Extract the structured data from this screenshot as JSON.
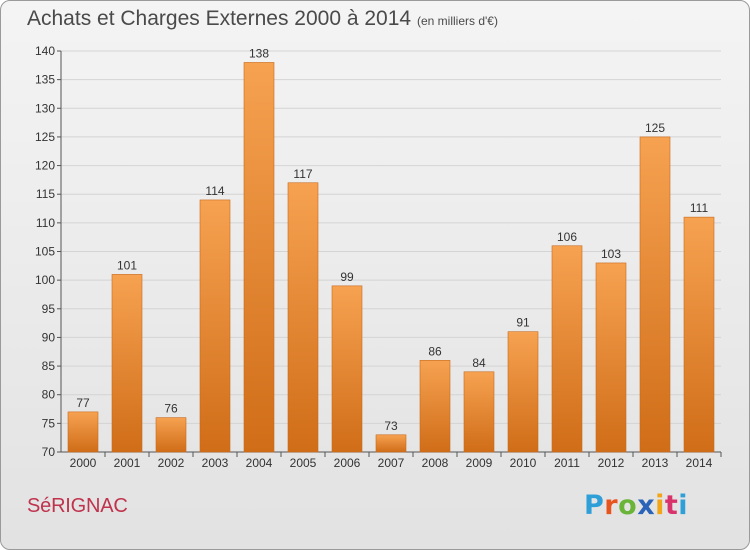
{
  "title": "Achats et Charges Externes 2000 à 2014",
  "unit_note": "(en milliers d'€)",
  "commune": "SéRIGNAC",
  "logo": {
    "letters": [
      "P",
      "r",
      "o",
      "x",
      "i",
      "t",
      "i"
    ],
    "colors": [
      "#2f9fd8",
      "#e8541e",
      "#6ab43a",
      "#2a63b8",
      "#f2a516",
      "#d8336b",
      "#2f9fd8"
    ]
  },
  "colors": {
    "bar_top": "#f6a251",
    "bar_bottom": "#d06d18",
    "label": "#333333",
    "axis": "#555555"
  },
  "chart_data": {
    "type": "bar",
    "categories": [
      "2000",
      "2001",
      "2002",
      "2003",
      "2004",
      "2005",
      "2006",
      "2007",
      "2008",
      "2009",
      "2010",
      "2011",
      "2012",
      "2013",
      "2014"
    ],
    "values": [
      77,
      101,
      76,
      114,
      138,
      117,
      99,
      73,
      86,
      84,
      91,
      106,
      103,
      125,
      111
    ],
    "data_labels": [
      "77",
      "101",
      "76",
      "114",
      "138",
      "117",
      "99",
      "73",
      "86",
      "84",
      "91",
      "106",
      "103",
      "125",
      "111"
    ],
    "yticks": [
      "70",
      "75",
      "80",
      "85",
      "90",
      "95",
      "100",
      "105",
      "110",
      "115",
      "120",
      "125",
      "130",
      "135",
      "140"
    ],
    "ylim": [
      70,
      140
    ],
    "grid": true,
    "title": "Achats et Charges Externes 2000 à 2014",
    "xlabel": "",
    "ylabel": ""
  }
}
